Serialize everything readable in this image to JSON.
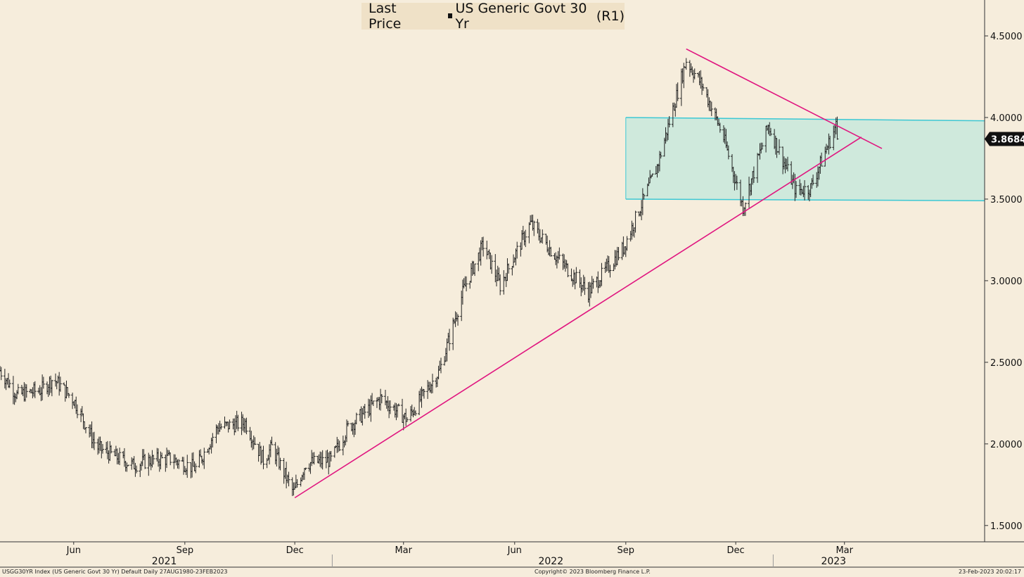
{
  "legend": {
    "field": "Last Price",
    "series": "US Generic Govt 30 Yr",
    "axis_ref": "(R1)"
  },
  "footer": {
    "left": "USGG30YR Index (US Generic Govt 30 Yr) Default  Daily 27AUG1980-23FEB2023",
    "center": "Copyright© 2023 Bloomberg Finance L.P.",
    "right": "23-Feb-2023 20:02:17"
  },
  "colors": {
    "background": "#f6eddc",
    "price_bars": "#222222",
    "trendlines": "#e0157f",
    "channel_fill": "#cfe9dc",
    "channel_lines": "#3cc8d4"
  },
  "chart_data": {
    "type": "ohlc",
    "title": "",
    "y_axis_side": "right",
    "ylim": [
      1.4,
      4.72
    ],
    "y_ticks": [
      "4.5000",
      "4.0000",
      "3.5000",
      "3.0000",
      "2.5000",
      "2.0000",
      "1.5000"
    ],
    "last_value_label": "3.8684",
    "x_range": [
      "2021-04-01",
      "2023-06-25"
    ],
    "month_ticks": [
      {
        "label": "Jun",
        "date": "2021-06-01"
      },
      {
        "label": "Sep",
        "date": "2021-09-01"
      },
      {
        "label": "Dec",
        "date": "2021-12-01"
      },
      {
        "label": "Mar",
        "date": "2022-03-01"
      },
      {
        "label": "Jun",
        "date": "2022-06-01"
      },
      {
        "label": "Sep",
        "date": "2022-09-01"
      },
      {
        "label": "Dec",
        "date": "2022-12-01"
      },
      {
        "label": "Mar",
        "date": "2023-03-01"
      }
    ],
    "year_labels": [
      {
        "label": "2021",
        "date": "2021-08-15"
      },
      {
        "label": "2022",
        "date": "2022-07-01"
      },
      {
        "label": "2023",
        "date": "2023-02-20"
      }
    ],
    "year_separators": [
      "2022-01-01",
      "2023-01-01"
    ],
    "series_anchors": [
      [
        "2021-04-01",
        2.45
      ],
      [
        "2021-04-15",
        2.3
      ],
      [
        "2021-05-05",
        2.33
      ],
      [
        "2021-05-15",
        2.4
      ],
      [
        "2021-06-01",
        2.27
      ],
      [
        "2021-06-20",
        1.98
      ],
      [
        "2021-07-20",
        1.87
      ],
      [
        "2021-08-04",
        1.9
      ],
      [
        "2021-08-20",
        1.91
      ],
      [
        "2021-09-10",
        1.85
      ],
      [
        "2021-09-28",
        2.1
      ],
      [
        "2021-10-21",
        2.13
      ],
      [
        "2021-11-05",
        1.9
      ],
      [
        "2021-11-12",
        1.98
      ],
      [
        "2021-11-30",
        1.7
      ],
      [
        "2021-12-10",
        1.88
      ],
      [
        "2021-12-31",
        1.9
      ],
      [
        "2022-01-14",
        2.1
      ],
      [
        "2022-02-10",
        2.28
      ],
      [
        "2022-02-24",
        2.2
      ],
      [
        "2022-03-04",
        2.15
      ],
      [
        "2022-03-31",
        2.45
      ],
      [
        "2022-04-20",
        2.95
      ],
      [
        "2022-05-06",
        3.22
      ],
      [
        "2022-05-20",
        2.97
      ],
      [
        "2022-06-14",
        3.35
      ],
      [
        "2022-07-05",
        3.15
      ],
      [
        "2022-08-01",
        2.93
      ],
      [
        "2022-08-30",
        3.2
      ],
      [
        "2022-09-27",
        3.7
      ],
      [
        "2022-10-21",
        4.35
      ],
      [
        "2022-11-03",
        4.2
      ],
      [
        "2022-11-20",
        3.9
      ],
      [
        "2022-12-07",
        3.45
      ],
      [
        "2022-12-28",
        3.95
      ],
      [
        "2023-01-20",
        3.55
      ],
      [
        "2023-02-01",
        3.57
      ],
      [
        "2023-02-22",
        3.95
      ],
      [
        "2023-02-23",
        3.87
      ]
    ],
    "annotations": {
      "rising_support": {
        "from": [
          "2021-12-01",
          1.67
        ],
        "to": [
          "2023-03-15",
          3.88
        ]
      },
      "falling_resistance": {
        "from": [
          "2022-10-21",
          4.42
        ],
        "to": [
          "2023-04-01",
          3.81
        ]
      },
      "range_band": {
        "start": "2022-09-01",
        "end": "2023-06-25",
        "upper": [
          4.0,
          3.98
        ],
        "lower": [
          3.5,
          3.49
        ]
      }
    }
  }
}
